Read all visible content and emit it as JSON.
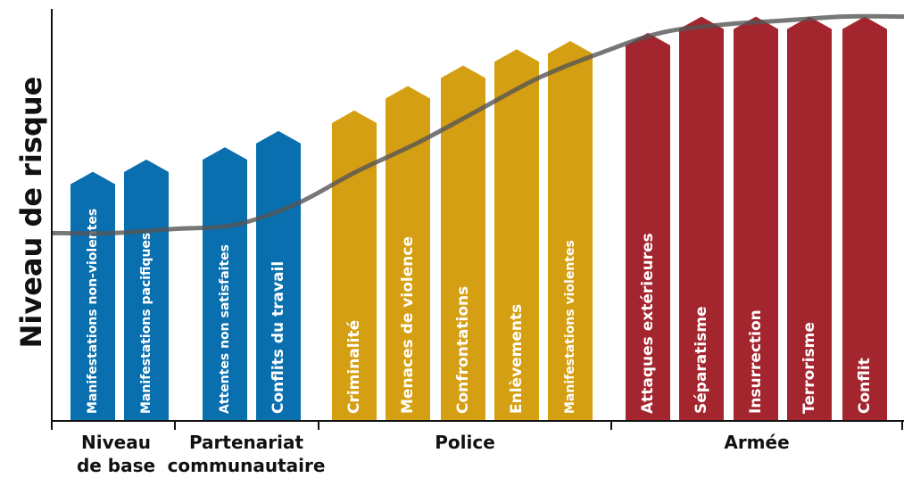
{
  "chart_data": {
    "type": "bar",
    "ylabel": "Niveau de risque",
    "xlabel": "",
    "ylim": [
      0,
      100
    ],
    "grid": false,
    "bars": [
      {
        "label": "Manifestations non-violentes",
        "value": 61,
        "group": 0
      },
      {
        "label": "Manifestations pacifiques",
        "value": 64,
        "group": 0
      },
      {
        "label": "Attentes non satisfaites",
        "value": 67,
        "group": 1
      },
      {
        "label": "Conflits du travail",
        "value": 71,
        "group": 1
      },
      {
        "label": "Criminalité",
        "value": 76,
        "group": 2
      },
      {
        "label": "Menaces de violence",
        "value": 82,
        "group": 2
      },
      {
        "label": "Confrontations",
        "value": 87,
        "group": 2
      },
      {
        "label": "Enlèvements",
        "value": 91,
        "group": 2
      },
      {
        "label": "Manifestations violentes",
        "value": 93,
        "group": 2
      },
      {
        "label": "Attaques extérieures",
        "value": 95,
        "group": 3
      },
      {
        "label": "Séparatisme",
        "value": 99,
        "group": 3
      },
      {
        "label": "Insurrection",
        "value": 99,
        "group": 3
      },
      {
        "label": "Terrorisme",
        "value": 99,
        "group": 3
      },
      {
        "label": "Conflit",
        "value": 99,
        "group": 3
      }
    ],
    "groups": [
      {
        "lines": [
          "Niveau",
          "de base"
        ],
        "color": "#0a6fae"
      },
      {
        "lines": [
          "Partenariat",
          "communautaire"
        ],
        "color": "#0a6fae"
      },
      {
        "lines": [
          "Police"
        ],
        "color": "#d49f12"
      },
      {
        "lines": [
          "Armée"
        ],
        "color": "#a3262f"
      }
    ],
    "trend_curve": [
      [
        0,
        46
      ],
      [
        1,
        46
      ],
      [
        2,
        47
      ],
      [
        3,
        48
      ],
      [
        4,
        53
      ],
      [
        5,
        61
      ],
      [
        6,
        68
      ],
      [
        7,
        76
      ],
      [
        8,
        84
      ],
      [
        9,
        90
      ],
      [
        10,
        95
      ],
      [
        11,
        97
      ],
      [
        12,
        98
      ],
      [
        13,
        99
      ],
      [
        14,
        99
      ]
    ],
    "curve_color": "#555555"
  }
}
